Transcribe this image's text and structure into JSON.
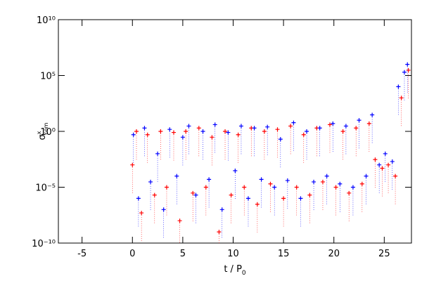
{
  "chart_data": {
    "type": "scatter",
    "x_label": {
      "text": "t / P",
      "subscript": "0"
    },
    "y_label": {
      "symbol": "σ",
      "superscript": "x",
      "subscript": "com"
    },
    "xlim": [
      -7.35,
      27.7
    ],
    "xticks": [
      -5,
      0,
      5,
      10,
      15,
      20,
      25
    ],
    "ylim": [
      1e-10,
      10000000000.0
    ],
    "log_y": true,
    "yticks": [
      {
        "value": 1e-10,
        "label": "10⁻¹⁰"
      },
      {
        "value": 1e-05,
        "label": "10⁻⁵"
      },
      {
        "value": 1,
        "label": "10⁰"
      },
      {
        "value": 100000,
        "label": "10⁵"
      },
      {
        "value": 10000000000,
        "label": "10¹⁰"
      }
    ],
    "marker": "+",
    "series": [
      {
        "color": "#ff0000",
        "x": [
          0.0,
          0.4,
          0.9,
          1.5,
          2.2,
          2.8,
          3.4,
          4.1,
          4.7,
          5.3,
          6.0,
          6.6,
          7.3,
          7.9,
          8.6,
          9.2,
          9.8,
          10.5,
          11.1,
          11.8,
          12.4,
          13.1,
          13.7,
          14.4,
          15.0,
          15.7,
          16.3,
          17.0,
          17.6,
          18.3,
          18.9,
          19.6,
          20.2,
          20.9,
          21.5,
          22.2,
          22.8,
          23.5,
          24.1,
          24.8,
          25.4,
          26.1,
          26.7,
          27.4
        ],
        "values": [
          0.001,
          1,
          5e-08,
          0.5,
          2e-06,
          1,
          1e-05,
          0.8,
          1e-08,
          1,
          3e-06,
          2,
          1e-05,
          0.3,
          1e-09,
          1,
          2e-06,
          0.5,
          1e-05,
          2,
          3e-07,
          1,
          2e-05,
          1.5,
          1e-06,
          3,
          1e-05,
          0.5,
          2e-06,
          2,
          3e-05,
          4,
          1e-05,
          1,
          3e-06,
          2,
          2e-05,
          5,
          0.003,
          0.0005,
          0.001,
          0.0001,
          1000,
          300000
        ]
      },
      {
        "color": "#0000ff",
        "x": [
          0.1,
          0.6,
          1.2,
          1.8,
          2.5,
          3.1,
          3.7,
          4.4,
          5.0,
          5.6,
          6.3,
          7.0,
          7.6,
          8.2,
          8.9,
          9.5,
          10.2,
          10.8,
          11.5,
          12.1,
          12.8,
          13.4,
          14.1,
          14.7,
          15.4,
          16.0,
          16.7,
          17.3,
          18.0,
          18.6,
          19.3,
          19.9,
          20.6,
          21.2,
          21.9,
          22.5,
          23.2,
          23.8,
          24.5,
          25.1,
          25.8,
          26.4,
          27.0,
          27.3
        ],
        "values": [
          0.5,
          1e-06,
          2,
          3e-05,
          0.01,
          1e-07,
          1.5,
          0.0001,
          0.3,
          3,
          2e-06,
          1,
          5e-05,
          4,
          1e-07,
          0.8,
          0.0003,
          3,
          1e-06,
          2,
          5e-05,
          2.5,
          1e-05,
          0.2,
          4e-05,
          6,
          1e-06,
          1,
          3e-05,
          2,
          0.0001,
          5,
          2e-05,
          3,
          1e-05,
          10,
          0.0001,
          30,
          0.001,
          0.01,
          0.002,
          10000,
          200000,
          1000000
        ]
      }
    ]
  }
}
